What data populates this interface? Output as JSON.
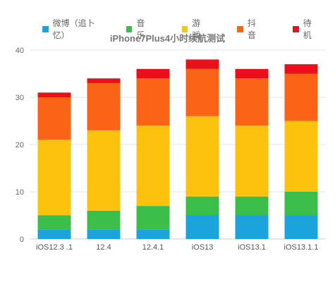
{
  "chart_data": {
    "type": "bar",
    "stacked": true,
    "title": "iPhone7Plus4小时续航测试",
    "categories": [
      "iOS12.3 .1",
      "12.4",
      "12.4.1",
      "iOS13",
      "iOS13.1",
      "iOS13.1.1"
    ],
    "series": [
      {
        "name": "微博（追卜忆）",
        "color": "#1aa3dc",
        "values": [
          2,
          2,
          2,
          5,
          5,
          5
        ]
      },
      {
        "name": "音乐",
        "color": "#3cbf4a",
        "values": [
          3,
          4,
          5,
          4,
          4,
          5
        ]
      },
      {
        "name": "游戏",
        "color": "#fcc20d",
        "values": [
          16,
          17,
          17,
          17,
          15,
          15
        ]
      },
      {
        "name": "抖音",
        "color": "#fb6316",
        "values": [
          9,
          10,
          10,
          10,
          10,
          10
        ]
      },
      {
        "name": "待机",
        "color": "#e9101b",
        "values": [
          1,
          1,
          2,
          2,
          2,
          2
        ]
      }
    ],
    "ylim": [
      0,
      40
    ],
    "yticks": [
      0,
      10,
      20,
      30,
      40
    ],
    "grid": true,
    "legend": "top"
  }
}
